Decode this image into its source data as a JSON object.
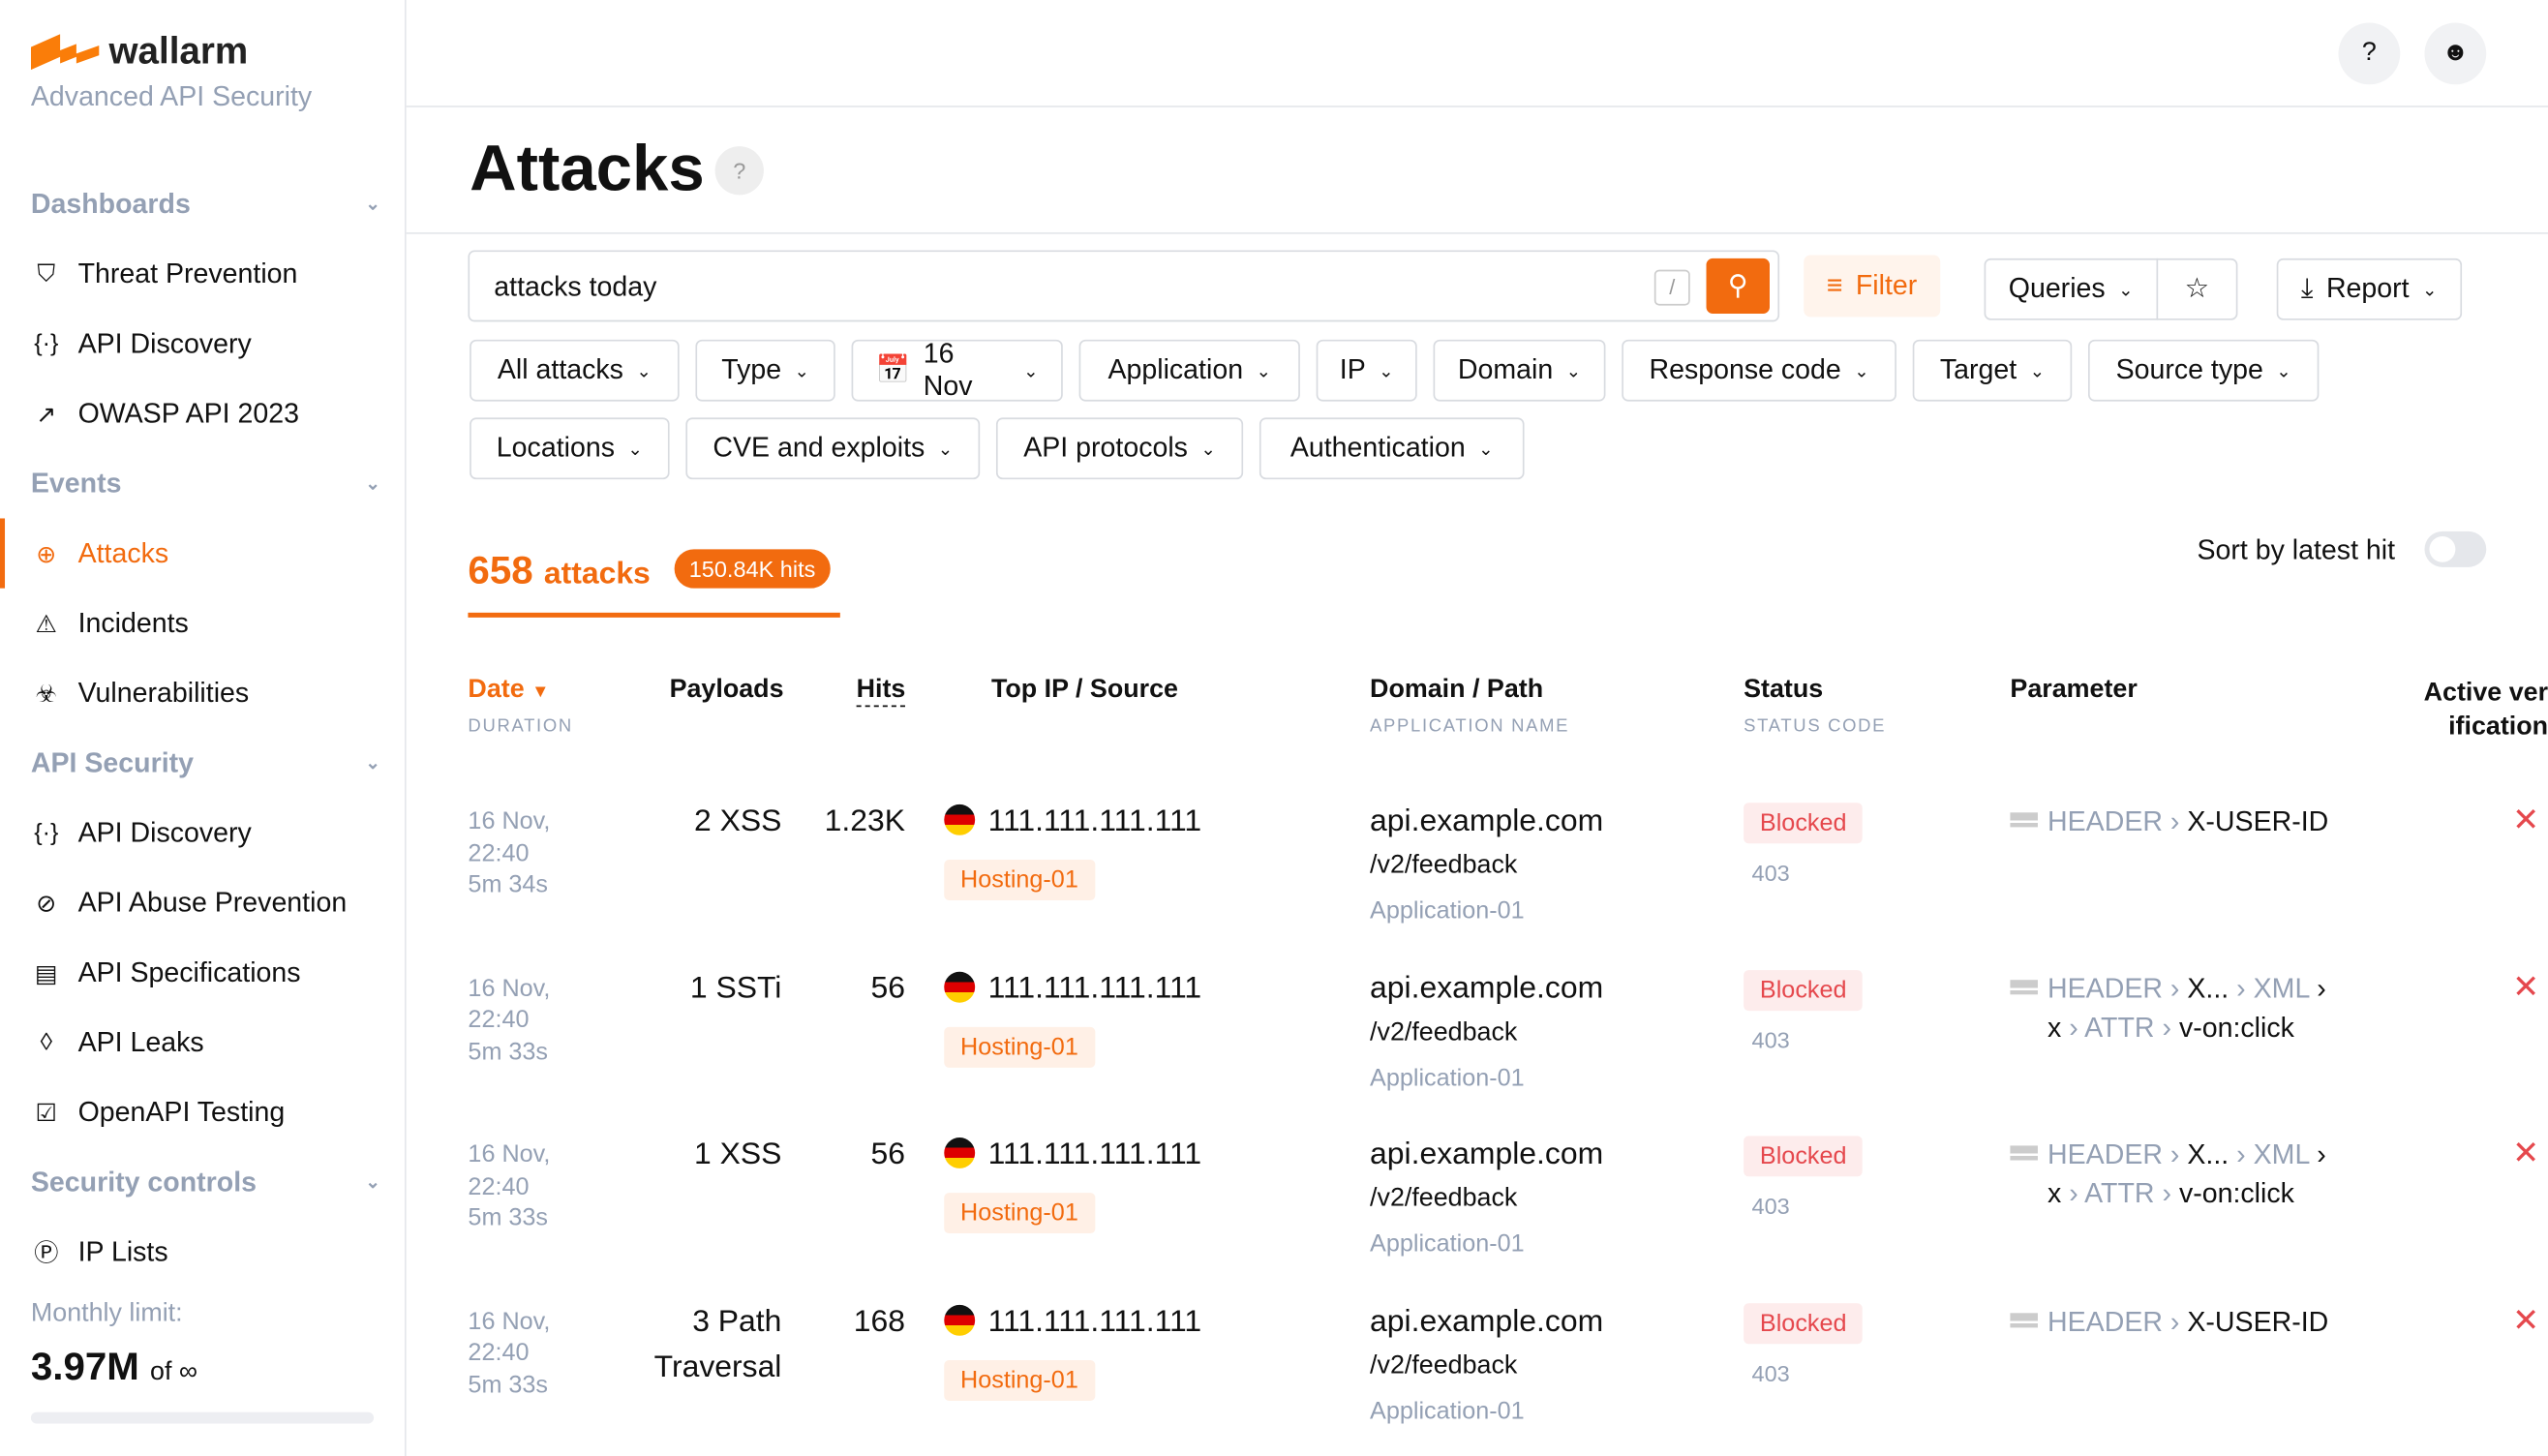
{
  "brand": {
    "name": "wallarm",
    "tagline": "Advanced API Security",
    "accent": "#f26b0f"
  },
  "sidebar": {
    "sections": [
      {
        "title": "Dashboards",
        "items": [
          {
            "label": "Threat Prevention",
            "icon": "shield-icon"
          },
          {
            "label": "API Discovery",
            "icon": "braces-icon"
          },
          {
            "label": "OWASP API 2023",
            "icon": "arrow-icon"
          }
        ]
      },
      {
        "title": "Events",
        "items": [
          {
            "label": "Attacks",
            "icon": "target-icon",
            "active": true
          },
          {
            "label": "Incidents",
            "icon": "warning-icon"
          },
          {
            "label": "Vulnerabilities",
            "icon": "biohazard-icon"
          }
        ]
      },
      {
        "title": "API Security",
        "items": [
          {
            "label": "API Discovery",
            "icon": "braces-icon"
          },
          {
            "label": "API Abuse Prevention",
            "icon": "bot-icon"
          },
          {
            "label": "API Specifications",
            "icon": "document-icon"
          },
          {
            "label": "API Leaks",
            "icon": "drop-icon"
          },
          {
            "label": "OpenAPI Testing",
            "icon": "checklist-icon"
          }
        ]
      },
      {
        "title": "Security controls",
        "items": [
          {
            "label": "IP Lists",
            "icon": "ip-icon"
          }
        ]
      }
    ],
    "limit_label": "Monthly limit:",
    "limit_value": "3.97M",
    "limit_of": "of ∞"
  },
  "page": {
    "title": "Attacks",
    "search_value": "attacks today",
    "slash": "/",
    "filter": "Filter",
    "queries": "Queries",
    "report": "Report"
  },
  "filters": [
    "All attacks",
    "Type",
    "16 Nov",
    "Application",
    "IP",
    "Domain",
    "Response code",
    "Target",
    "Source type",
    "Locations",
    "CVE and exploits",
    "API protocols",
    "Authentication"
  ],
  "summary": {
    "count": "658",
    "count_unit": "attacks",
    "hits": "150.84K hits",
    "sort_label": "Sort by latest hit",
    "sort_on": false
  },
  "columns": {
    "date": "Date",
    "date_sub": "DURATION",
    "payloads": "Payloads",
    "hits": "Hits",
    "source": "Top IP / Source",
    "domain": "Domain / Path",
    "domain_sub": "APPLICATION NAME",
    "status": "Status",
    "status_sub": "STATUS CODE",
    "parameter": "Parameter",
    "active": "Active verification"
  },
  "rows": [
    {
      "date": "16 Nov,",
      "time": "22:40",
      "duration": "5m 34s",
      "payload1": "2 XSS",
      "payload2": "",
      "hits": "1.23K",
      "ip": "111.111.111.111",
      "source": "Hosting-01",
      "domain": "api.example.com",
      "path": "/v2/feedback",
      "app": "Application-01",
      "status": "Blocked",
      "code": "403",
      "p1": "HEADER",
      "p2": "X-USER-ID",
      "p3": "",
      "p4": "",
      "p5": "",
      "p6": ""
    },
    {
      "date": "16 Nov,",
      "time": "22:40",
      "duration": "5m 33s",
      "payload1": "1 SSTi",
      "payload2": "",
      "hits": "56",
      "ip": "111.111.111.111",
      "source": "Hosting-01",
      "domain": "api.example.com",
      "path": "/v2/feedback",
      "app": "Application-01",
      "status": "Blocked",
      "code": "403",
      "p1": "HEADER",
      "p2": "X...",
      "p3": "XML",
      "p4": "x",
      "p5": "ATTR",
      "p6": "v-on:click"
    },
    {
      "date": "16 Nov,",
      "time": "22:40",
      "duration": "5m 33s",
      "payload1": "1 XSS",
      "payload2": "",
      "hits": "56",
      "ip": "111.111.111.111",
      "source": "Hosting-01",
      "domain": "api.example.com",
      "path": "/v2/feedback",
      "app": "Application-01",
      "status": "Blocked",
      "code": "403",
      "p1": "HEADER",
      "p2": "X...",
      "p3": "XML",
      "p4": "x",
      "p5": "ATTR",
      "p6": "v-on:click"
    },
    {
      "date": "16 Nov,",
      "time": "22:40",
      "duration": "5m 33s",
      "payload1": "3 Path",
      "payload2": "Traversal",
      "hits": "168",
      "ip": "111.111.111.111",
      "source": "Hosting-01",
      "domain": "api.example.com",
      "path": "/v2/feedback",
      "app": "Application-01",
      "status": "Blocked",
      "code": "403",
      "p1": "HEADER",
      "p2": "X-USER-ID",
      "p3": "",
      "p4": "",
      "p5": "",
      "p6": ""
    }
  ]
}
